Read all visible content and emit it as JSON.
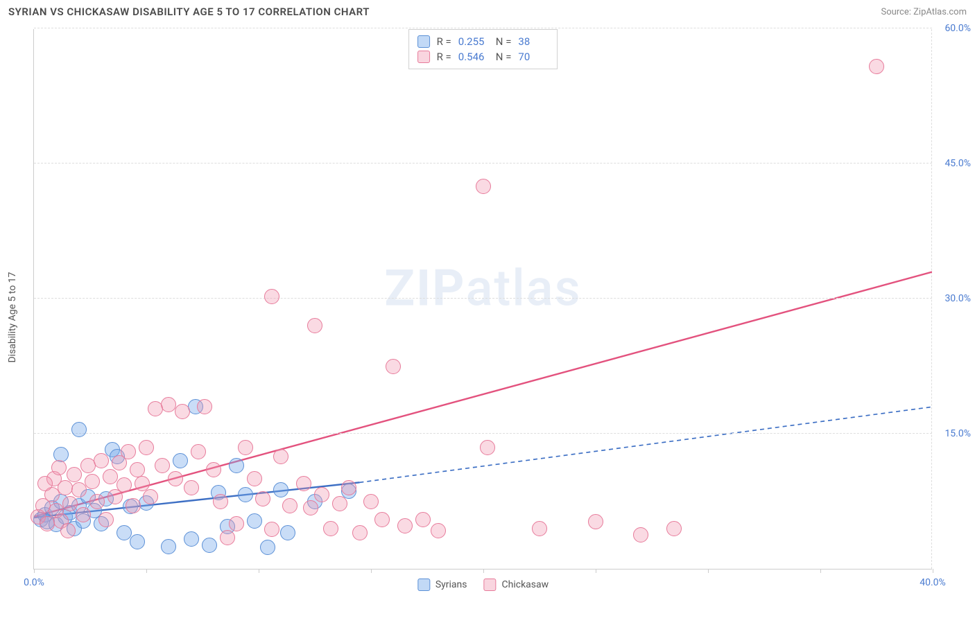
{
  "header": {
    "title": "SYRIAN VS CHICKASAW DISABILITY AGE 5 TO 17 CORRELATION CHART",
    "source": "Source: ZipAtlas.com"
  },
  "watermark": {
    "zip": "ZIP",
    "atlas": "atlas"
  },
  "chart": {
    "type": "scatter",
    "ylabel": "Disability Age 5 to 17",
    "xlim": [
      0,
      40
    ],
    "ylim": [
      0,
      60
    ],
    "xtick_positions": [
      0,
      5,
      10,
      15,
      20,
      25,
      30,
      35,
      40
    ],
    "xtick_labels": {
      "0": "0.0%",
      "40": "40.0%"
    },
    "ytick_positions": [
      15,
      30,
      45,
      60
    ],
    "ytick_labels": {
      "15": "15.0%",
      "30": "30.0%",
      "45": "45.0%",
      "60": "60.0%"
    },
    "background_color": "#ffffff",
    "grid_color": "#dddddd",
    "axis_color": "#cccccc",
    "marker_radius": 11,
    "series": [
      {
        "name": "Syrians",
        "color_fill": "rgba(120,170,235,0.4)",
        "color_stroke": "#5a8fd6",
        "r": "0.255",
        "n": "38",
        "trend": {
          "x1": 0,
          "y1": 5.7,
          "x2": 14.5,
          "y2": 9.6,
          "x2_ext": 40,
          "y2_ext": 18.0,
          "stroke": "#3d6fc4",
          "width": 2.4,
          "dash_ext": "6 5"
        },
        "points": [
          [
            0.3,
            5.5
          ],
          [
            0.5,
            6.0
          ],
          [
            0.6,
            5.2
          ],
          [
            0.8,
            6.8
          ],
          [
            1.0,
            4.9
          ],
          [
            1.2,
            7.5
          ],
          [
            1.4,
            5.8
          ],
          [
            1.6,
            6.2
          ],
          [
            1.2,
            12.7
          ],
          [
            1.8,
            4.5
          ],
          [
            2.0,
            7.0
          ],
          [
            2.2,
            5.3
          ],
          [
            2.4,
            8.0
          ],
          [
            2.7,
            6.5
          ],
          [
            2.0,
            15.5
          ],
          [
            3.0,
            5.0
          ],
          [
            3.2,
            7.8
          ],
          [
            3.5,
            13.2
          ],
          [
            3.7,
            12.5
          ],
          [
            4.0,
            4.0
          ],
          [
            4.3,
            6.9
          ],
          [
            4.6,
            3.0
          ],
          [
            5.0,
            7.3
          ],
          [
            6.0,
            2.5
          ],
          [
            6.5,
            12.0
          ],
          [
            7.0,
            3.3
          ],
          [
            7.2,
            18.0
          ],
          [
            7.8,
            2.6
          ],
          [
            8.2,
            8.5
          ],
          [
            8.6,
            4.7
          ],
          [
            9.0,
            11.5
          ],
          [
            9.4,
            8.2
          ],
          [
            9.8,
            5.3
          ],
          [
            10.4,
            2.4
          ],
          [
            11.0,
            8.8
          ],
          [
            11.3,
            4.0
          ],
          [
            12.5,
            7.5
          ],
          [
            14.0,
            8.6
          ]
        ]
      },
      {
        "name": "Chickasaw",
        "color_fill": "rgba(240,150,175,0.35)",
        "color_stroke": "#e77a9a",
        "r": "0.546",
        "n": "70",
        "trend": {
          "x1": 0,
          "y1": 5.8,
          "x2": 40,
          "y2": 33.0,
          "stroke": "#e3527e",
          "width": 2.4
        },
        "points": [
          [
            0.2,
            5.8
          ],
          [
            0.4,
            7.0
          ],
          [
            0.6,
            5.0
          ],
          [
            0.8,
            8.2
          ],
          [
            1.0,
            6.5
          ],
          [
            0.9,
            10.0
          ],
          [
            1.2,
            5.3
          ],
          [
            1.4,
            9.0
          ],
          [
            1.6,
            7.2
          ],
          [
            1.8,
            10.5
          ],
          [
            1.5,
            4.2
          ],
          [
            2.0,
            8.8
          ],
          [
            2.2,
            6.0
          ],
          [
            2.4,
            11.5
          ],
          [
            2.6,
            9.7
          ],
          [
            2.8,
            7.5
          ],
          [
            3.0,
            12.0
          ],
          [
            3.2,
            5.5
          ],
          [
            3.4,
            10.2
          ],
          [
            3.6,
            8.0
          ],
          [
            3.8,
            11.8
          ],
          [
            4.0,
            9.3
          ],
          [
            4.2,
            13.0
          ],
          [
            4.4,
            7.0
          ],
          [
            4.6,
            11.0
          ],
          [
            4.8,
            9.5
          ],
          [
            5.0,
            13.5
          ],
          [
            5.2,
            8.0
          ],
          [
            5.4,
            17.8
          ],
          [
            5.7,
            11.5
          ],
          [
            6.0,
            18.2
          ],
          [
            6.3,
            10.0
          ],
          [
            6.6,
            17.5
          ],
          [
            7.0,
            9.0
          ],
          [
            7.3,
            13.0
          ],
          [
            7.6,
            18.0
          ],
          [
            8.0,
            11.0
          ],
          [
            8.3,
            7.5
          ],
          [
            8.6,
            3.5
          ],
          [
            9.0,
            5.0
          ],
          [
            9.4,
            13.5
          ],
          [
            9.8,
            10.0
          ],
          [
            10.2,
            7.8
          ],
          [
            10.6,
            4.4
          ],
          [
            11.0,
            12.5
          ],
          [
            11.4,
            7.0
          ],
          [
            10.6,
            30.2
          ],
          [
            12.0,
            9.5
          ],
          [
            12.3,
            6.8
          ],
          [
            12.5,
            27.0
          ],
          [
            12.8,
            8.2
          ],
          [
            13.2,
            4.5
          ],
          [
            13.6,
            7.2
          ],
          [
            14.0,
            9.0
          ],
          [
            14.5,
            4.0
          ],
          [
            15.0,
            7.5
          ],
          [
            15.5,
            5.5
          ],
          [
            16.0,
            22.5
          ],
          [
            16.5,
            4.8
          ],
          [
            17.3,
            5.5
          ],
          [
            18.0,
            4.2
          ],
          [
            20.0,
            42.5
          ],
          [
            20.2,
            13.5
          ],
          [
            22.5,
            4.5
          ],
          [
            25.0,
            5.2
          ],
          [
            27.0,
            3.8
          ],
          [
            28.5,
            4.5
          ],
          [
            37.5,
            55.8
          ],
          [
            0.5,
            9.5
          ],
          [
            1.1,
            11.2
          ]
        ]
      }
    ],
    "bottom_legend": [
      {
        "swatch": "blue",
        "label": "Syrians"
      },
      {
        "swatch": "pink",
        "label": "Chickasaw"
      }
    ],
    "stats_labels": {
      "r": "R =",
      "n": "N ="
    }
  }
}
